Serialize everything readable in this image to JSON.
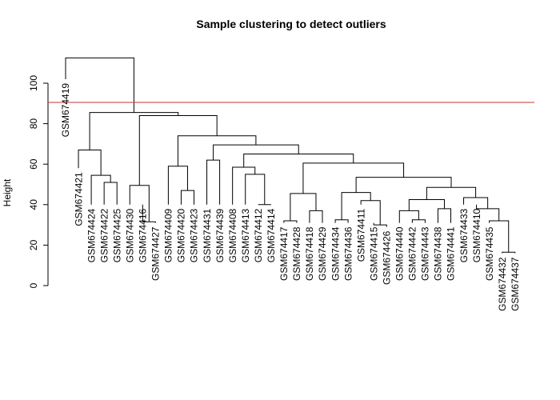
{
  "chart_data": {
    "type": "dendrogram",
    "title": "Sample clustering to detect outliers",
    "ylabel": "Height",
    "xlabel": "",
    "ylim": [
      0,
      118
    ],
    "yticks": [
      0,
      20,
      40,
      60,
      80,
      100
    ],
    "cut_line": {
      "height": 90.5,
      "color": "#cc3333"
    },
    "leaves": [
      "GSM674419",
      "GSM674421",
      "GSM674424",
      "GSM674422",
      "GSM674425",
      "GSM674430",
      "GSM674416",
      "GSM674427",
      "GSM674409",
      "GSM674420",
      "GSM674423",
      "GSM674431",
      "GSM674439",
      "GSM674408",
      "GSM674413",
      "GSM674412",
      "GSM674414",
      "GSM674417",
      "GSM674428",
      "GSM674418",
      "GSM674429",
      "GSM674434",
      "GSM674436",
      "GSM674411",
      "GSM674415",
      "GSM674426",
      "GSM674440",
      "GSM674442",
      "GSM674443",
      "GSM674438",
      "GSM674441",
      "GSM674433",
      "GSM674410",
      "GSM674435",
      "GSM674432",
      "GSM674437"
    ],
    "leaf_heights": [
      102,
      58,
      40,
      40,
      40,
      40,
      40,
      31,
      40,
      40,
      40,
      40,
      40,
      40,
      40,
      40,
      40,
      31,
      31,
      31,
      31,
      31,
      31,
      40,
      31,
      29,
      31,
      31,
      31,
      31,
      31,
      40,
      40,
      31,
      16,
      16
    ],
    "merges": [
      {
        "a": [
          "leaf",
          3
        ],
        "b": [
          "leaf",
          4
        ],
        "height": 51
      },
      {
        "a": [
          "leaf",
          2
        ],
        "b": [
          "node",
          0
        ],
        "height": 54.5
      },
      {
        "a": [
          "leaf",
          1
        ],
        "b": [
          "node",
          1
        ],
        "height": 67
      },
      {
        "a": [
          "leaf",
          6
        ],
        "b": [
          "leaf",
          7
        ],
        "height": 31.5
      },
      {
        "a": [
          "leaf",
          5
        ],
        "b": [
          "node",
          3
        ],
        "height": 49.5
      },
      {
        "a": [
          "leaf",
          9
        ],
        "b": [
          "leaf",
          10
        ],
        "height": 47
      },
      {
        "a": [
          "leaf",
          8
        ],
        "b": [
          "node",
          5
        ],
        "height": 59
      },
      {
        "a": [
          "leaf",
          11
        ],
        "b": [
          "leaf",
          12
        ],
        "height": 62
      },
      {
        "a": [
          "leaf",
          15
        ],
        "b": [
          "leaf",
          16
        ],
        "height": 40
      },
      {
        "a": [
          "leaf",
          14
        ],
        "b": [
          "node",
          8
        ],
        "height": 55
      },
      {
        "a": [
          "leaf",
          13
        ],
        "b": [
          "node",
          9
        ],
        "height": 58.5
      },
      {
        "a": [
          "leaf",
          17
        ],
        "b": [
          "leaf",
          18
        ],
        "height": 32
      },
      {
        "a": [
          "leaf",
          19
        ],
        "b": [
          "leaf",
          20
        ],
        "height": 37
      },
      {
        "a": [
          "node",
          11
        ],
        "b": [
          "node",
          12
        ],
        "height": 45.5
      },
      {
        "a": [
          "leaf",
          21
        ],
        "b": [
          "leaf",
          22
        ],
        "height": 32.5
      },
      {
        "a": [
          "leaf",
          24
        ],
        "b": [
          "leaf",
          25
        ],
        "height": 30
      },
      {
        "a": [
          "leaf",
          23
        ],
        "b": [
          "node",
          15
        ],
        "height": 42
      },
      {
        "a": [
          "node",
          14
        ],
        "b": [
          "node",
          16
        ],
        "height": 46
      },
      {
        "a": [
          "leaf",
          27
        ],
        "b": [
          "leaf",
          28
        ],
        "height": 32.5
      },
      {
        "a": [
          "leaf",
          26
        ],
        "b": [
          "node",
          18
        ],
        "height": 37
      },
      {
        "a": [
          "leaf",
          29
        ],
        "b": [
          "leaf",
          30
        ],
        "height": 38
      },
      {
        "a": [
          "node",
          19
        ],
        "b": [
          "node",
          20
        ],
        "height": 42.5
      },
      {
        "a": [
          "leaf",
          34
        ],
        "b": [
          "leaf",
          35
        ],
        "height": 16.5
      },
      {
        "a": [
          "leaf",
          33
        ],
        "b": [
          "node",
          22
        ],
        "height": 32
      },
      {
        "a": [
          "leaf",
          32
        ],
        "b": [
          "node",
          23
        ],
        "height": 38
      },
      {
        "a": [
          "leaf",
          31
        ],
        "b": [
          "node",
          24
        ],
        "height": 43.5
      },
      {
        "a": [
          "node",
          21
        ],
        "b": [
          "node",
          25
        ],
        "height": 48.5
      },
      {
        "a": [
          "node",
          17
        ],
        "b": [
          "node",
          26
        ],
        "height": 53.5
      },
      {
        "a": [
          "node",
          13
        ],
        "b": [
          "node",
          27
        ],
        "height": 60.5
      },
      {
        "a": [
          "node",
          10
        ],
        "b": [
          "node",
          28
        ],
        "height": 65
      },
      {
        "a": [
          "node",
          7
        ],
        "b": [
          "node",
          29
        ],
        "height": 69.5
      },
      {
        "a": [
          "node",
          6
        ],
        "b": [
          "node",
          30
        ],
        "height": 74
      },
      {
        "a": [
          "node",
          4
        ],
        "b": [
          "node",
          31
        ],
        "height": 84
      },
      {
        "a": [
          "node",
          2
        ],
        "b": [
          "node",
          32
        ],
        "height": 85.5
      },
      {
        "a": [
          "leaf",
          0
        ],
        "b": [
          "node",
          33
        ],
        "height": 112.5
      }
    ]
  }
}
